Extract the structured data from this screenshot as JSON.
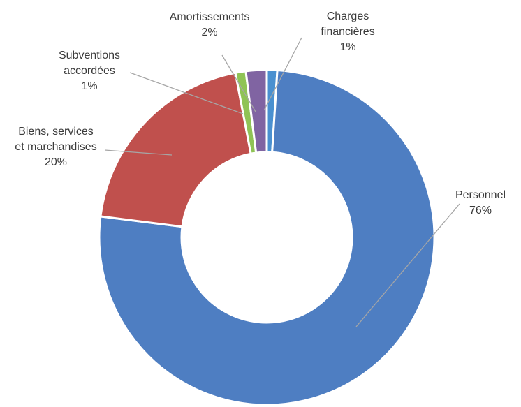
{
  "chart_data": {
    "type": "pie",
    "variant": "donut",
    "title": "",
    "start_angle_deg": 0,
    "direction": "clockwise",
    "slices": [
      {
        "label_lines": [
          "Charges",
          "financières"
        ],
        "percent_label": "1%",
        "value": 1,
        "color": "#4A90D0"
      },
      {
        "label_lines": [
          "Personnel"
        ],
        "percent_label": "76%",
        "value": 76,
        "color": "#4E7EC2"
      },
      {
        "label_lines": [
          "Biens, services",
          "et marchandises"
        ],
        "percent_label": "20%",
        "value": 20,
        "color": "#C0504D"
      },
      {
        "label_lines": [
          "Subventions",
          "accordées"
        ],
        "percent_label": "1%",
        "value": 1,
        "color": "#8FC356"
      },
      {
        "label_lines": [
          "Amortissements"
        ],
        "percent_label": "2%",
        "value": 2,
        "color": "#8064A2"
      }
    ],
    "legend": "none",
    "data_labels": "outside with leader lines"
  }
}
